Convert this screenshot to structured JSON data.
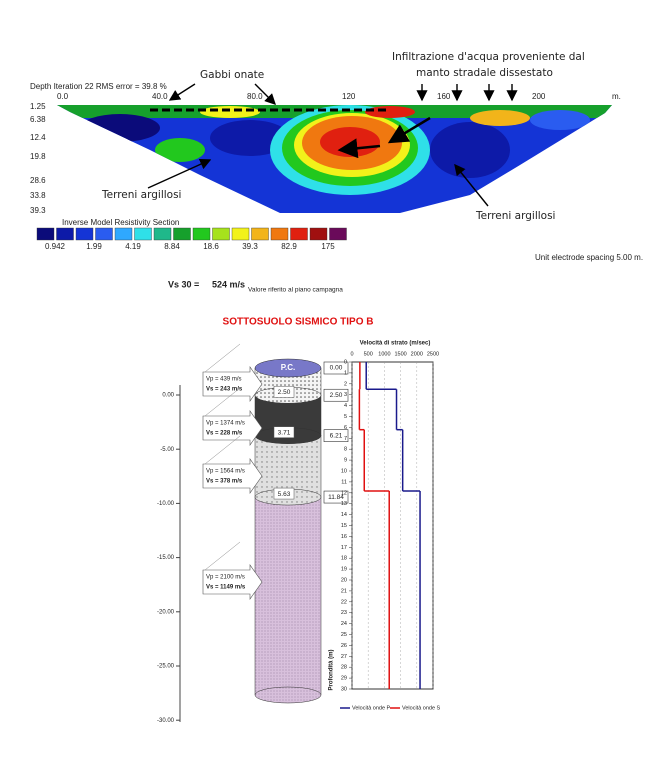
{
  "resistivity": {
    "header": "Depth  Iteration 22 RMS error = 39.8 %",
    "x_labels": [
      "0.0",
      "40.0",
      "80.0",
      "120",
      "160",
      "200"
    ],
    "x_unit": "m.",
    "depth_labels": [
      "1.25",
      "6.38",
      "12.4",
      "19.8",
      "28.6",
      "33.8",
      "39.3"
    ],
    "note_left": "Gabbi onate",
    "note_right_1": "Infiltrazione d'acqua proveniente dal",
    "note_right_2": "manto stradale dissestato",
    "clay_1": "Terreni argillosi",
    "clay_2": "Terreni argillosi",
    "section_title": "Inverse Model Resistivity Section",
    "scale_colors": [
      "#0b0b7a",
      "#0d1aa8",
      "#1434d6",
      "#2a5cf0",
      "#2fa8ff",
      "#2fe0e8",
      "#1fb88a",
      "#16a02c",
      "#22c81e",
      "#a6e21c",
      "#f2f21a",
      "#f2b41a",
      "#f07810",
      "#e02010",
      "#a01010",
      "#6a0a5a"
    ],
    "scale_labels": [
      "0.942",
      "1.99",
      "4.19",
      "8.84",
      "18.6",
      "39.3",
      "82.9",
      "175"
    ],
    "spacing": "Unit electrode spacing 5.00 m."
  },
  "vs30": {
    "label": "Vs 30 =",
    "value": "524 m/s",
    "note": "Valore riferito al piano campagna"
  },
  "column": {
    "title": "SOTTOSUOLO SISMICO TIPO B",
    "cap": "P.C.",
    "axis_labels": [
      "0.00",
      "-5.00",
      "-10.00",
      "-15.00",
      "-20.00",
      "-25.00",
      "-30.00"
    ],
    "thickness_labels": [
      "2.50",
      "3.71",
      "5.63"
    ],
    "layers": [
      {
        "vp": "Vp = 439 m/s",
        "vs": "Vs = 243 m/s"
      },
      {
        "vp": "Vp = 1374 m/s",
        "vs": "Vs = 228 m/s"
      },
      {
        "vp": "Vp = 1564 m/s",
        "vs": "Vs = 378 m/s"
      },
      {
        "vp": "Vp = 2100 m/s",
        "vs": "Vs = 1149 m/s"
      }
    ]
  },
  "chart_data": {
    "type": "step",
    "title": "Velocità di strato (m/sec)",
    "y_label": "Profondità (m)",
    "xlim": [
      0,
      2500
    ],
    "xticks": [
      0,
      500,
      1000,
      1500,
      2000,
      2500
    ],
    "ylim": [
      0,
      30
    ],
    "yticks": [
      0,
      1,
      2,
      3,
      4,
      5,
      6,
      7,
      8,
      9,
      10,
      11,
      12,
      13,
      14,
      15,
      16,
      17,
      18,
      19,
      20,
      21,
      22,
      23,
      24,
      25,
      26,
      27,
      28,
      29,
      30
    ],
    "layer_tops": [
      {
        "value": 0,
        "label": "0.00"
      },
      {
        "value": 2.5,
        "label": "2.50"
      },
      {
        "value": 6.21,
        "label": "6.21"
      },
      {
        "value": 11.84,
        "label": "11.84"
      }
    ],
    "grid": true,
    "series": [
      {
        "name": "Velocità onde P",
        "color": "#1a1a8c",
        "values": [
          439,
          1374,
          1564,
          2100
        ]
      },
      {
        "name": "Velocità onde S",
        "color": "#e01010",
        "values": [
          243,
          228,
          378,
          1149
        ]
      }
    ]
  }
}
